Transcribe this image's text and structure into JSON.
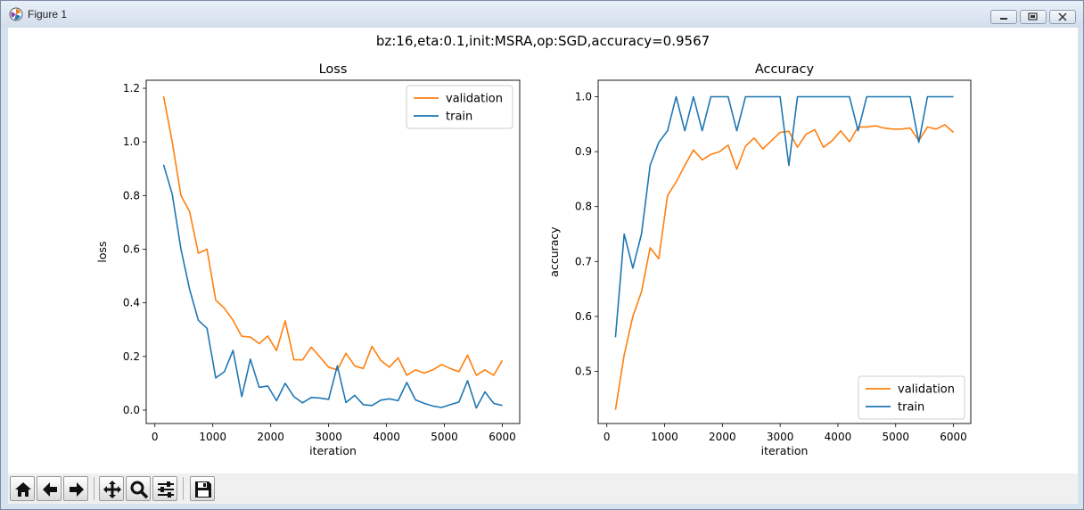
{
  "window": {
    "title": "Figure 1",
    "suptitle": "bz:16,eta:0.1,init:MSRA,op:SGD,accuracy=0.9567"
  },
  "toolbar": [
    {
      "name": "home",
      "icon": "home-icon"
    },
    {
      "name": "back",
      "icon": "arrow-left-icon"
    },
    {
      "name": "forward",
      "icon": "arrow-right-icon"
    },
    {
      "name": "pan",
      "icon": "move-icon"
    },
    {
      "name": "zoom",
      "icon": "magnifier-icon"
    },
    {
      "name": "configure-subplots",
      "icon": "sliders-icon"
    },
    {
      "name": "save",
      "icon": "floppy-disk-icon"
    }
  ],
  "colors": {
    "validation": "#ff7f0e",
    "train": "#1f77b4"
  },
  "chart_data": [
    {
      "type": "line",
      "title": "Loss",
      "xlabel": "iteration",
      "ylabel": "loss",
      "xlim": [
        -150,
        6300
      ],
      "ylim": [
        -0.05,
        1.23
      ],
      "xticks": [
        0,
        1000,
        2000,
        3000,
        4000,
        5000,
        6000
      ],
      "yticks": [
        0.0,
        0.2,
        0.4,
        0.6,
        0.8,
        1.0,
        1.2
      ],
      "ytick_labels": [
        "0.0",
        "0.2",
        "0.4",
        "0.6",
        "0.8",
        "1.0",
        "1.2"
      ],
      "legend": "top-right",
      "x": [
        150,
        300,
        450,
        600,
        750,
        900,
        1050,
        1200,
        1350,
        1500,
        1650,
        1800,
        1950,
        2100,
        2250,
        2400,
        2550,
        2700,
        2850,
        3000,
        3150,
        3300,
        3450,
        3600,
        3750,
        3900,
        4050,
        4200,
        4350,
        4500,
        4650,
        4800,
        4950,
        5100,
        5250,
        5400,
        5550,
        5700,
        5850,
        6000
      ],
      "series": [
        {
          "name": "validation",
          "values": [
            1.17,
            1.0,
            0.8,
            0.74,
            0.585,
            0.6,
            0.41,
            0.38,
            0.335,
            0.275,
            0.272,
            0.248,
            0.276,
            0.222,
            0.333,
            0.188,
            0.187,
            0.235,
            0.198,
            0.16,
            0.15,
            0.212,
            0.165,
            0.155,
            0.238,
            0.185,
            0.16,
            0.195,
            0.13,
            0.15,
            0.138,
            0.15,
            0.17,
            0.155,
            0.143,
            0.205,
            0.13,
            0.15,
            0.13,
            0.185
          ]
        },
        {
          "name": "train",
          "values": [
            0.915,
            0.805,
            0.6,
            0.45,
            0.335,
            0.305,
            0.12,
            0.143,
            0.223,
            0.05,
            0.19,
            0.085,
            0.09,
            0.035,
            0.1,
            0.05,
            0.027,
            0.047,
            0.045,
            0.04,
            0.165,
            0.028,
            0.055,
            0.02,
            0.017,
            0.037,
            0.042,
            0.035,
            0.103,
            0.038,
            0.025,
            0.015,
            0.01,
            0.02,
            0.03,
            0.11,
            0.008,
            0.068,
            0.025,
            0.017
          ]
        }
      ]
    },
    {
      "type": "line",
      "title": "Accuracy",
      "xlabel": "iteration",
      "ylabel": "accuracy",
      "xlim": [
        -150,
        6300
      ],
      "ylim": [
        0.405,
        1.03
      ],
      "xticks": [
        0,
        1000,
        2000,
        3000,
        4000,
        5000,
        6000
      ],
      "yticks": [
        0.5,
        0.6,
        0.7,
        0.8,
        0.9,
        1.0
      ],
      "ytick_labels": [
        "0.5",
        "0.6",
        "0.7",
        "0.8",
        "0.9",
        "1.0"
      ],
      "legend": "bottom-right",
      "x": [
        150,
        300,
        450,
        600,
        750,
        900,
        1050,
        1200,
        1350,
        1500,
        1650,
        1800,
        1950,
        2100,
        2250,
        2400,
        2550,
        2700,
        2850,
        3000,
        3150,
        3300,
        3450,
        3600,
        3750,
        3900,
        4050,
        4200,
        4350,
        4500,
        4650,
        4800,
        4950,
        5100,
        5250,
        5400,
        5550,
        5700,
        5850,
        6000
      ],
      "series": [
        {
          "name": "validation",
          "values": [
            0.43,
            0.53,
            0.6,
            0.645,
            0.725,
            0.705,
            0.82,
            0.845,
            0.875,
            0.903,
            0.885,
            0.895,
            0.9,
            0.912,
            0.868,
            0.91,
            0.925,
            0.905,
            0.92,
            0.935,
            0.937,
            0.908,
            0.932,
            0.94,
            0.908,
            0.92,
            0.938,
            0.918,
            0.945,
            0.945,
            0.947,
            0.943,
            0.941,
            0.941,
            0.943,
            0.92,
            0.945,
            0.941,
            0.949,
            0.935
          ]
        },
        {
          "name": "train",
          "values": [
            0.562,
            0.75,
            0.688,
            0.75,
            0.875,
            0.917,
            0.938,
            1.0,
            0.938,
            1.0,
            0.938,
            1.0,
            1.0,
            1.0,
            0.938,
            1.0,
            1.0,
            1.0,
            1.0,
            1.0,
            0.875,
            1.0,
            1.0,
            1.0,
            1.0,
            1.0,
            1.0,
            1.0,
            0.938,
            1.0,
            1.0,
            1.0,
            1.0,
            1.0,
            1.0,
            0.917,
            1.0,
            1.0,
            1.0,
            1.0
          ]
        }
      ]
    }
  ]
}
